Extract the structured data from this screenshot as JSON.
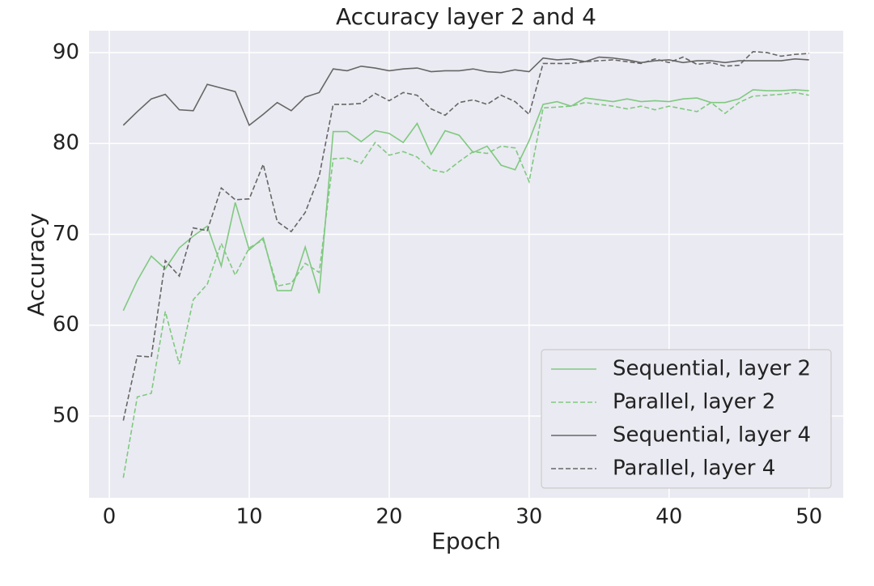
{
  "chart_data": {
    "type": "line",
    "title": "Accuracy  layer 2 and 4",
    "x_label": "Epoch",
    "y_label": "Accuracy",
    "x": [
      1,
      2,
      3,
      4,
      5,
      6,
      7,
      8,
      9,
      10,
      11,
      12,
      13,
      14,
      15,
      16,
      17,
      18,
      19,
      20,
      21,
      22,
      23,
      24,
      25,
      26,
      27,
      28,
      29,
      30,
      31,
      32,
      33,
      34,
      35,
      36,
      37,
      38,
      39,
      40,
      41,
      42,
      43,
      44,
      45,
      46,
      47,
      48,
      49,
      50
    ],
    "series": [
      {
        "name": "Sequential, layer 2",
        "color": "#7fc97f",
        "linestyle": "solid",
        "values": [
          61.6,
          64.9,
          67.6,
          66.2,
          68.5,
          69.8,
          70.9,
          66.5,
          73.5,
          68.3,
          69.6,
          63.8,
          63.8,
          68.6,
          63.5,
          81.3,
          81.3,
          80.2,
          81.4,
          81.1,
          80.1,
          82.2,
          78.8,
          81.4,
          80.9,
          79.0,
          79.7,
          77.6,
          77.1,
          80.3,
          84.3,
          84.6,
          84.1,
          85.0,
          84.8,
          84.6,
          84.9,
          84.6,
          84.7,
          84.6,
          84.9,
          85.0,
          84.5,
          84.5,
          84.9,
          85.9,
          85.8,
          85.8,
          85.9,
          85.8
        ]
      },
      {
        "name": "Parallel, layer 2",
        "color": "#7fc97f",
        "linestyle": "dashed",
        "values": [
          43.2,
          52.1,
          52.5,
          61.5,
          55.7,
          62.8,
          64.5,
          69.0,
          65.5,
          68.5,
          69.4,
          64.3,
          64.6,
          66.8,
          65.8,
          78.3,
          78.4,
          77.8,
          80.1,
          78.7,
          79.1,
          78.5,
          77.1,
          76.8,
          78.0,
          79.1,
          78.9,
          79.7,
          79.5,
          75.8,
          83.9,
          84.0,
          84.1,
          84.5,
          84.3,
          84.1,
          83.8,
          84.1,
          83.7,
          84.1,
          83.8,
          83.5,
          84.5,
          83.3,
          84.5,
          85.2,
          85.3,
          85.4,
          85.6,
          85.3
        ]
      },
      {
        "name": "Sequential, layer 4",
        "color": "#666666",
        "linestyle": "solid",
        "values": [
          82.0,
          83.5,
          84.9,
          85.4,
          83.7,
          83.6,
          86.5,
          86.1,
          85.7,
          82.0,
          83.2,
          84.5,
          83.6,
          85.1,
          85.6,
          88.2,
          88.0,
          88.5,
          88.3,
          88.0,
          88.2,
          88.3,
          87.9,
          88.0,
          88.0,
          88.2,
          87.9,
          87.8,
          88.1,
          87.9,
          89.4,
          89.2,
          89.3,
          89.0,
          89.5,
          89.4,
          89.2,
          88.9,
          89.1,
          89.2,
          88.9,
          89.1,
          89.1,
          88.9,
          89.1,
          89.1,
          89.1,
          89.1,
          89.3,
          89.2
        ]
      },
      {
        "name": "Parallel, layer 4",
        "color": "#666666",
        "linestyle": "dashed",
        "values": [
          49.5,
          56.6,
          56.5,
          67.1,
          65.4,
          70.7,
          70.4,
          75.1,
          73.8,
          73.9,
          77.7,
          71.4,
          70.3,
          72.4,
          76.4,
          84.3,
          84.3,
          84.4,
          85.5,
          84.7,
          85.6,
          85.3,
          83.8,
          83.1,
          84.5,
          84.8,
          84.3,
          85.3,
          84.6,
          83.2,
          88.8,
          88.8,
          88.8,
          89.0,
          89.1,
          89.2,
          89.0,
          88.8,
          89.3,
          88.9,
          89.5,
          88.7,
          88.9,
          88.5,
          88.6,
          90.1,
          90.0,
          89.6,
          89.8,
          89.9
        ]
      }
    ],
    "xlim": [
      -1.45,
      52.45
    ],
    "xticks": [
      0,
      10,
      20,
      30,
      40,
      50
    ],
    "ylim": [
      41.0,
      92.4
    ],
    "yticks": [
      50,
      60,
      70,
      80,
      90
    ],
    "grid": true,
    "legend": "lower right"
  }
}
